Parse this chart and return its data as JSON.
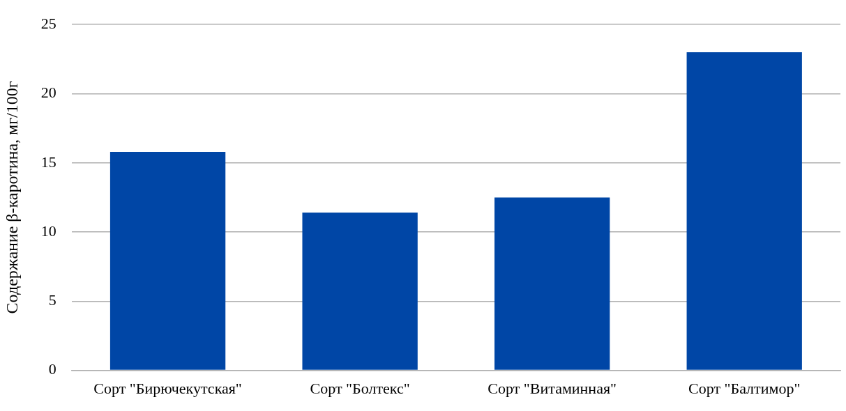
{
  "chart_data": {
    "type": "bar",
    "ylabel": "Содержание β-каротина, мг/100г",
    "categories": [
      "Сорт \"Бирючекутская\"",
      "Сорт \"Болтекс\"",
      "Сорт \"Витаминная\"",
      "Сорт \"Балтимор\""
    ],
    "values": [
      15.8,
      11.4,
      12.5,
      23.0
    ],
    "color": "#0046a6",
    "ylim": [
      0,
      25
    ],
    "yticks": [
      0,
      5,
      10,
      15,
      20,
      25
    ],
    "grid": "y",
    "legend": false
  }
}
